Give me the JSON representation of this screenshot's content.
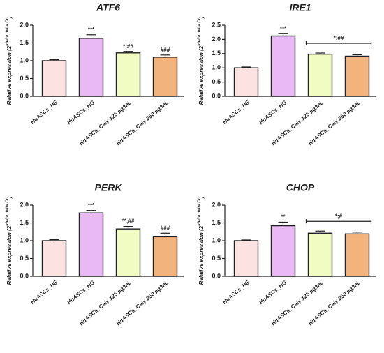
{
  "chart_data": [
    {
      "type": "bar",
      "title": "ATF6",
      "ylabel": {
        "base": "Relative expression (2",
        "sup": "-delta delta Ct",
        "end": ")"
      },
      "categories": [
        "HuASCs_HE",
        "HuASCs_HG",
        "HuASCs_Caly 125 µg/mL",
        "HuASCs_Caly 250 µg/mL"
      ],
      "values": [
        1.0,
        1.63,
        1.22,
        1.1
      ],
      "errors": [
        0.03,
        0.1,
        0.04,
        0.06
      ],
      "colors": [
        "#fde2e2",
        "#e9b9f5",
        "#f1fcc2",
        "#f2b47c"
      ],
      "annotations": [
        null,
        "***",
        "*;##",
        "###"
      ],
      "ylim": [
        0,
        2.0
      ],
      "yticks": [
        {
          "value": 0,
          "label": "0.0"
        },
        0.5,
        {
          "value": 1.0,
          "label": "1.0"
        },
        1.5,
        {
          "value": 2.0,
          "label": "2.0"
        }
      ]
    },
    {
      "type": "bar",
      "title": "IRE1",
      "ylabel": {
        "base": "Relative expression (2",
        "sup": "-delta delta Ct",
        "end": ")"
      },
      "categories": [
        "HuASCs_HE",
        "HuASCs_HG",
        "HuASCs_Caly 125 µg/mL",
        "HuASCs_Caly 250 µg/mL"
      ],
      "values": [
        1.0,
        2.12,
        1.48,
        1.41
      ],
      "errors": [
        0.03,
        0.08,
        0.04,
        0.05
      ],
      "colors": [
        "#fde2e2",
        "#e9b9f5",
        "#f1fcc2",
        "#f2b47c"
      ],
      "annotations": [
        null,
        "***",
        null,
        null
      ],
      "bracket_label": "*;##",
      "ylim": [
        0,
        2.5
      ],
      "yticks": [
        {
          "value": 0,
          "label": "0.0"
        },
        0.5,
        {
          "value": 1.0,
          "label": "1.0"
        },
        1.5,
        {
          "value": 2.0,
          "label": "2.0"
        },
        2.5
      ]
    },
    {
      "type": "bar",
      "title": "PERK",
      "ylabel": {
        "base": "Relative expression (2",
        "sup": "-delta delta Ct",
        "end": ")"
      },
      "categories": [
        "HuASCs_HE",
        "HuASCs_HG",
        "HuASCs_Caly 125 µg/mL",
        "HuASCs_Caly 250 µg/mL"
      ],
      "values": [
        1.0,
        1.78,
        1.33,
        1.11
      ],
      "errors": [
        0.03,
        0.07,
        0.07,
        0.1
      ],
      "colors": [
        "#fde2e2",
        "#e9b9f5",
        "#f1fcc2",
        "#f2b47c"
      ],
      "annotations": [
        null,
        "***",
        "**;##",
        "###"
      ],
      "ylim": [
        0,
        2.0
      ],
      "yticks": [
        {
          "value": 0,
          "label": "0.0"
        },
        0.5,
        {
          "value": 1.0,
          "label": "1.0"
        },
        1.5,
        {
          "value": 2.0,
          "label": "2.0"
        }
      ]
    },
    {
      "type": "bar",
      "title": "CHOP",
      "ylabel": {
        "base": "Relative expression (2",
        "sup": "-delta delta Ct",
        "end": ")"
      },
      "categories": [
        "HuASCs_HE",
        "HuASCs_HG",
        "HuASCs_Caly 125 µg/mL",
        "HuASCs_Caly 250 µg/mL"
      ],
      "values": [
        1.0,
        1.42,
        1.21,
        1.19
      ],
      "errors": [
        0.02,
        0.1,
        0.06,
        0.05
      ],
      "colors": [
        "#fde2e2",
        "#e9b9f5",
        "#f1fcc2",
        "#f2b47c"
      ],
      "annotations": [
        null,
        "**",
        null,
        null
      ],
      "bracket_label": "*;#",
      "ylim": [
        0,
        2.0
      ],
      "yticks": [
        {
          "value": 0,
          "label": "0.0"
        },
        0.5,
        {
          "value": 1.0,
          "label": "1.0"
        },
        1.5,
        {
          "value": 2.0,
          "label": "2.0"
        }
      ]
    }
  ]
}
